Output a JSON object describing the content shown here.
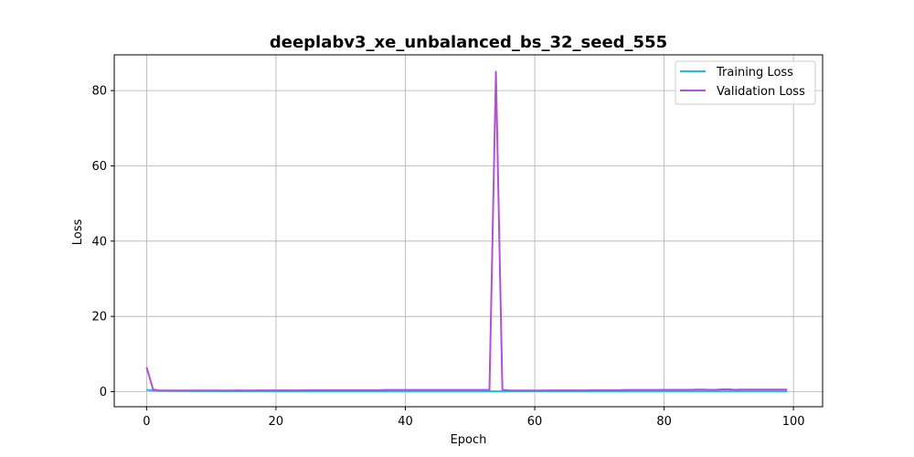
{
  "chart_data": {
    "type": "line",
    "title": "deeplabv3_xe_unbalanced_bs_32_seed_555",
    "xlabel": "Epoch",
    "ylabel": "Loss",
    "xlim": [
      -5,
      104.5
    ],
    "ylim": [
      -4,
      89.5
    ],
    "xticks": [
      0,
      20,
      40,
      60,
      80,
      100
    ],
    "yticks": [
      0,
      20,
      40,
      60,
      80
    ],
    "grid": true,
    "legend_position": "top-right",
    "series": [
      {
        "name": "Training Loss",
        "color": "#1bbcf0",
        "x": [
          0,
          1,
          2,
          3,
          4,
          5,
          6,
          7,
          8,
          9,
          10,
          11,
          12,
          13,
          14,
          15,
          16,
          17,
          18,
          19,
          20,
          21,
          22,
          23,
          24,
          25,
          26,
          27,
          28,
          29,
          30,
          31,
          32,
          33,
          34,
          35,
          36,
          37,
          38,
          39,
          40,
          41,
          42,
          43,
          44,
          45,
          46,
          47,
          48,
          49,
          50,
          51,
          52,
          53,
          54,
          55,
          56,
          57,
          58,
          59,
          60,
          61,
          62,
          63,
          64,
          65,
          66,
          67,
          68,
          69,
          70,
          71,
          72,
          73,
          74,
          75,
          76,
          77,
          78,
          79,
          80,
          81,
          82,
          83,
          84,
          85,
          86,
          87,
          88,
          89,
          90,
          91,
          92,
          93,
          94,
          95,
          96,
          97,
          98,
          99
        ],
        "y": [
          0.5,
          0.3,
          0.25,
          0.22,
          0.2,
          0.19,
          0.18,
          0.17,
          0.16,
          0.15,
          0.15,
          0.14,
          0.14,
          0.13,
          0.13,
          0.13,
          0.12,
          0.12,
          0.12,
          0.12,
          0.11,
          0.11,
          0.11,
          0.11,
          0.11,
          0.1,
          0.1,
          0.1,
          0.1,
          0.1,
          0.1,
          0.1,
          0.1,
          0.1,
          0.1,
          0.1,
          0.1,
          0.1,
          0.1,
          0.1,
          0.1,
          0.1,
          0.1,
          0.1,
          0.1,
          0.1,
          0.1,
          0.1,
          0.1,
          0.1,
          0.1,
          0.1,
          0.1,
          0.1,
          0.1,
          0.1,
          0.1,
          0.1,
          0.1,
          0.1,
          0.1,
          0.1,
          0.1,
          0.1,
          0.1,
          0.1,
          0.1,
          0.1,
          0.1,
          0.1,
          0.1,
          0.1,
          0.1,
          0.1,
          0.1,
          0.1,
          0.1,
          0.1,
          0.1,
          0.1,
          0.1,
          0.1,
          0.1,
          0.1,
          0.1,
          0.1,
          0.1,
          0.1,
          0.1,
          0.1,
          0.1,
          0.1,
          0.1,
          0.1,
          0.1,
          0.1,
          0.1,
          0.1,
          0.1,
          0.1
        ]
      },
      {
        "name": "Validation Loss",
        "color": "#b44fd6",
        "x": [
          0,
          1,
          2,
          3,
          4,
          5,
          6,
          7,
          8,
          9,
          10,
          11,
          12,
          13,
          14,
          15,
          16,
          17,
          18,
          19,
          20,
          21,
          22,
          23,
          24,
          25,
          26,
          27,
          28,
          29,
          30,
          31,
          32,
          33,
          34,
          35,
          36,
          37,
          38,
          39,
          40,
          41,
          42,
          43,
          44,
          45,
          46,
          47,
          48,
          49,
          50,
          51,
          52,
          53,
          54,
          55,
          56,
          57,
          58,
          59,
          60,
          61,
          62,
          63,
          64,
          65,
          66,
          67,
          68,
          69,
          70,
          71,
          72,
          73,
          74,
          75,
          76,
          77,
          78,
          79,
          80,
          81,
          82,
          83,
          84,
          85,
          86,
          87,
          88,
          89,
          90,
          91,
          92,
          93,
          94,
          95,
          96,
          97,
          98,
          99
        ],
        "y": [
          6.5,
          0.6,
          0.3,
          0.3,
          0.3,
          0.3,
          0.3,
          0.3,
          0.3,
          0.3,
          0.3,
          0.3,
          0.3,
          0.3,
          0.35,
          0.3,
          0.3,
          0.35,
          0.35,
          0.35,
          0.35,
          0.35,
          0.35,
          0.35,
          0.35,
          0.4,
          0.4,
          0.4,
          0.4,
          0.4,
          0.4,
          0.4,
          0.4,
          0.4,
          0.4,
          0.4,
          0.4,
          0.45,
          0.45,
          0.45,
          0.45,
          0.45,
          0.45,
          0.45,
          0.45,
          0.45,
          0.45,
          0.45,
          0.45,
          0.45,
          0.45,
          0.45,
          0.45,
          0.45,
          85,
          0.5,
          0.35,
          0.3,
          0.3,
          0.3,
          0.3,
          0.3,
          0.35,
          0.35,
          0.35,
          0.35,
          0.35,
          0.35,
          0.35,
          0.4,
          0.4,
          0.4,
          0.4,
          0.4,
          0.45,
          0.45,
          0.45,
          0.45,
          0.45,
          0.45,
          0.5,
          0.5,
          0.5,
          0.5,
          0.5,
          0.55,
          0.55,
          0.5,
          0.5,
          0.6,
          0.6,
          0.5,
          0.55,
          0.55,
          0.55,
          0.55,
          0.55,
          0.55,
          0.55,
          0.55
        ]
      }
    ]
  }
}
